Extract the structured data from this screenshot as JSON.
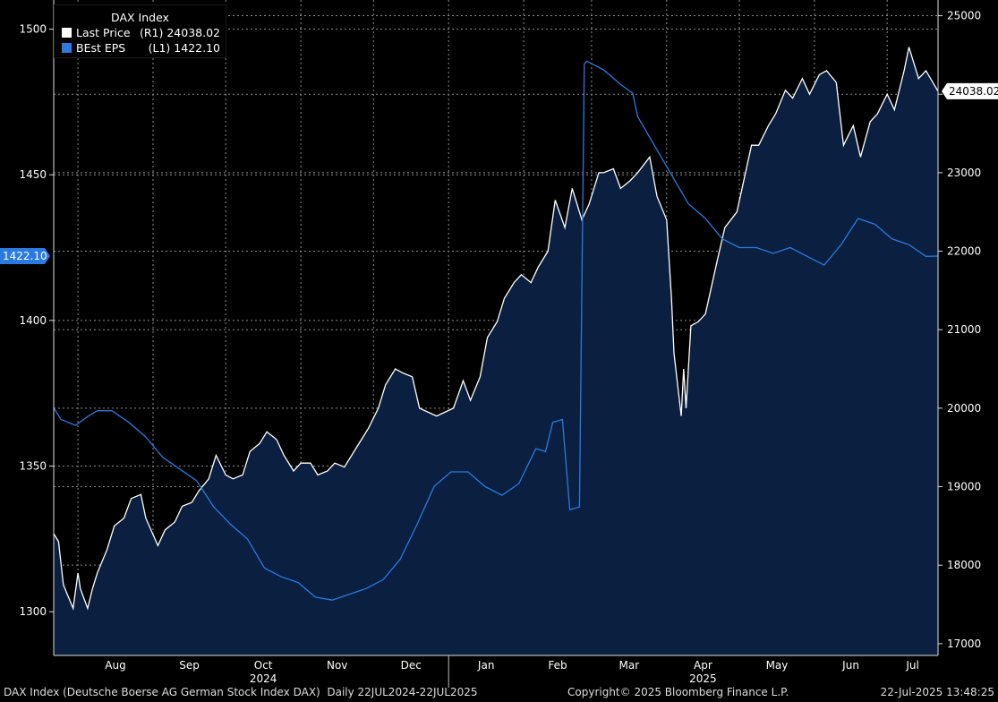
{
  "chart_data": {
    "type": "line",
    "title": "DAX Index",
    "x_range": [
      "2024-07-22",
      "2025-07-22"
    ],
    "x_months": [
      "Aug",
      "Sep",
      "Oct",
      "Nov",
      "Dec",
      "Jan",
      "Feb",
      "Mar",
      "Apr",
      "May",
      "Jun",
      "Jul"
    ],
    "x_years": [
      "2024",
      "2025"
    ],
    "left_axis": {
      "min": 1285,
      "max": 1510,
      "ticks": [
        1300,
        1350,
        1400,
        1450,
        1500
      ]
    },
    "right_axis": {
      "min": 16850,
      "max": 25200,
      "ticks": [
        17000,
        18000,
        19000,
        20000,
        21000,
        22000,
        23000,
        24000,
        25000
      ]
    },
    "grid": true,
    "legend_position": "top-left",
    "series": [
      {
        "name": "Last Price",
        "axis_tag": "(R1)",
        "last_value": "24038.02",
        "color": "#ffffff",
        "fill": "#0b2040",
        "axis": "right",
        "dates": [
          "2024-07-22",
          "2024-07-24",
          "2024-07-26",
          "2024-07-30",
          "2024-08-01",
          "2024-08-02",
          "2024-08-05",
          "2024-08-07",
          "2024-08-09",
          "2024-08-13",
          "2024-08-16",
          "2024-08-20",
          "2024-08-23",
          "2024-08-27",
          "2024-08-29",
          "2024-09-03",
          "2024-09-06",
          "2024-09-10",
          "2024-09-13",
          "2024-09-17",
          "2024-09-20",
          "2024-09-24",
          "2024-09-27",
          "2024-10-01",
          "2024-10-04",
          "2024-10-08",
          "2024-10-11",
          "2024-10-15",
          "2024-10-18",
          "2024-10-22",
          "2024-10-25",
          "2024-10-29",
          "2024-11-01",
          "2024-11-05",
          "2024-11-08",
          "2024-11-12",
          "2024-11-15",
          "2024-11-19",
          "2024-11-22",
          "2024-11-26",
          "2024-11-29",
          "2024-12-03",
          "2024-12-06",
          "2024-12-10",
          "2024-12-13",
          "2024-12-17",
          "2024-12-20",
          "2024-12-27",
          "2025-01-03",
          "2025-01-07",
          "2025-01-10",
          "2025-01-14",
          "2025-01-17",
          "2025-01-21",
          "2025-01-24",
          "2025-01-28",
          "2025-01-31",
          "2025-02-04",
          "2025-02-07",
          "2025-02-11",
          "2025-02-14",
          "2025-02-18",
          "2025-02-21",
          "2025-02-25",
          "2025-02-28",
          "2025-03-04",
          "2025-03-06",
          "2025-03-10",
          "2025-03-13",
          "2025-03-17",
          "2025-03-20",
          "2025-03-25",
          "2025-03-28",
          "2025-04-01",
          "2025-04-03",
          "2025-04-04",
          "2025-04-07",
          "2025-04-08",
          "2025-04-09",
          "2025-04-11",
          "2025-04-14",
          "2025-04-17",
          "2025-04-22",
          "2025-04-25",
          "2025-04-30",
          "2025-05-06",
          "2025-05-09",
          "2025-05-13",
          "2025-05-16",
          "2025-05-20",
          "2025-05-23",
          "2025-05-27",
          "2025-05-30",
          "2025-06-03",
          "2025-06-06",
          "2025-06-10",
          "2025-06-13",
          "2025-06-17",
          "2025-06-20",
          "2025-06-24",
          "2025-06-27",
          "2025-07-01",
          "2025-07-04",
          "2025-07-08",
          "2025-07-10",
          "2025-07-14",
          "2025-07-17",
          "2025-07-22"
        ],
        "values": [
          18400,
          18300,
          17750,
          17450,
          17900,
          17700,
          17450,
          17700,
          17900,
          18200,
          18500,
          18600,
          18850,
          18900,
          18600,
          18250,
          18450,
          18550,
          18750,
          18800,
          18950,
          19100,
          19400,
          19150,
          19100,
          19150,
          19450,
          19550,
          19700,
          19600,
          19400,
          19200,
          19300,
          19300,
          19150,
          19200,
          19300,
          19250,
          19400,
          19600,
          19750,
          20000,
          20300,
          20500,
          20450,
          20400,
          20000,
          19900,
          20000,
          20350,
          20100,
          20400,
          20900,
          21100,
          21400,
          21600,
          21700,
          21600,
          21800,
          22000,
          22650,
          22300,
          22800,
          22400,
          22600,
          23000,
          23000,
          23050,
          22800,
          22900,
          23000,
          23200,
          22700,
          22400,
          21400,
          20700,
          19900,
          20500,
          20000,
          21050,
          21100,
          21200,
          21900,
          22300,
          22500,
          23350,
          23350,
          23600,
          23750,
          24050,
          23950,
          24200,
          24000,
          24250,
          24300,
          24150,
          23350,
          23600,
          23200,
          23650,
          23750,
          24000,
          23800,
          24300,
          24600,
          24200,
          24300,
          24038
        ]
      },
      {
        "name": "BEst EPS",
        "axis_tag": "(L1)",
        "last_value": "1422.10",
        "color": "#2a7ae2",
        "axis": "left",
        "dates": [
          "2024-07-22",
          "2024-07-25",
          "2024-07-31",
          "2024-08-05",
          "2024-08-09",
          "2024-08-15",
          "2024-08-22",
          "2024-08-29",
          "2024-09-05",
          "2024-09-12",
          "2024-09-19",
          "2024-09-26",
          "2024-10-03",
          "2024-10-10",
          "2024-10-17",
          "2024-10-24",
          "2024-10-31",
          "2024-11-07",
          "2024-11-14",
          "2024-11-21",
          "2024-11-28",
          "2024-12-05",
          "2024-12-12",
          "2024-12-19",
          "2024-12-26",
          "2025-01-02",
          "2025-01-09",
          "2025-01-16",
          "2025-01-23",
          "2025-01-30",
          "2025-02-06",
          "2025-02-10",
          "2025-02-13",
          "2025-02-17",
          "2025-02-20",
          "2025-02-24",
          "2025-02-26",
          "2025-02-27",
          "2025-03-06",
          "2025-03-13",
          "2025-03-18",
          "2025-03-20",
          "2025-03-27",
          "2025-04-03",
          "2025-04-10",
          "2025-04-17",
          "2025-04-24",
          "2025-05-01",
          "2025-05-08",
          "2025-05-15",
          "2025-05-22",
          "2025-05-29",
          "2025-06-05",
          "2025-06-12",
          "2025-06-19",
          "2025-06-26",
          "2025-07-03",
          "2025-07-10",
          "2025-07-17",
          "2025-07-22"
        ],
        "values": [
          1370,
          1366,
          1364,
          1367,
          1369,
          1369,
          1365,
          1360,
          1353,
          1349,
          1345,
          1336,
          1330,
          1325,
          1315,
          1312,
          1310,
          1305,
          1304,
          1306,
          1308,
          1311,
          1318,
          1330,
          1343,
          1348,
          1348,
          1343,
          1340,
          1344,
          1356,
          1355,
          1365,
          1366,
          1335,
          1336,
          1488,
          1489,
          1486,
          1481,
          1478,
          1470,
          1460,
          1450,
          1440,
          1435,
          1428,
          1425,
          1425,
          1423,
          1425,
          1422,
          1419,
          1426,
          1435,
          1433,
          1428,
          1426,
          1422,
          1422.1
        ]
      }
    ]
  },
  "footer": {
    "left": "DAX Index (Deutsche Boerse AG German Stock Index DAX)  Daily 22JUL2024-22JUL2025",
    "center": "Copyright© 2025 Bloomberg Finance L.P.",
    "right": "22-Jul-2025 13:48:25"
  }
}
